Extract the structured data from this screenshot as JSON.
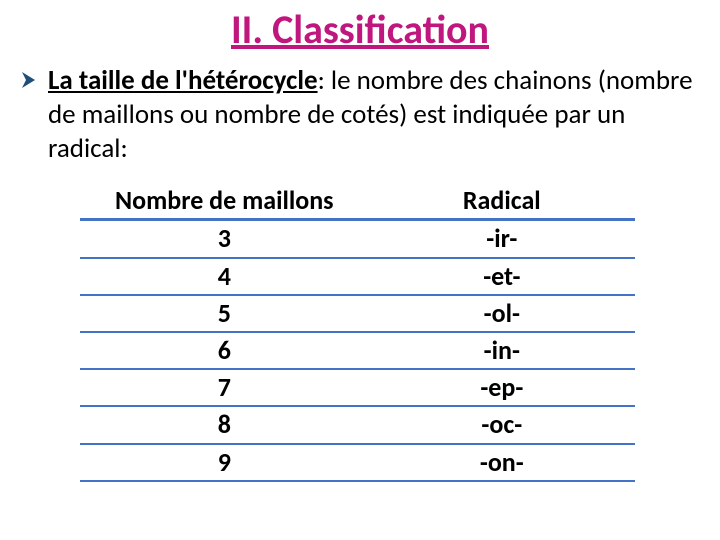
{
  "title": {
    "text": "II. Classification",
    "color": "#c0177f",
    "fontsize": 40
  },
  "bullet": {
    "arrow_color": "#1f4e79",
    "fontsize": 27,
    "lead_bold_underline": "La taille de l'hétérocycle",
    "rest": ": le nombre des chainons (nombre de maillons ou nombre de cotés) est indiquée par un radical:"
  },
  "table": {
    "header_fontsize": 26,
    "cell_fontsize": 26,
    "border_color": "#4472c4",
    "columns": [
      "Nombre de maillons",
      "Radical"
    ],
    "rows": [
      [
        "3",
        "-ir-"
      ],
      [
        "4",
        "-et-"
      ],
      [
        "5",
        "-ol-"
      ],
      [
        "6",
        "-in-"
      ],
      [
        "7",
        "-ep-"
      ],
      [
        "8",
        "-oc-"
      ],
      [
        "9",
        "-on-"
      ]
    ]
  }
}
